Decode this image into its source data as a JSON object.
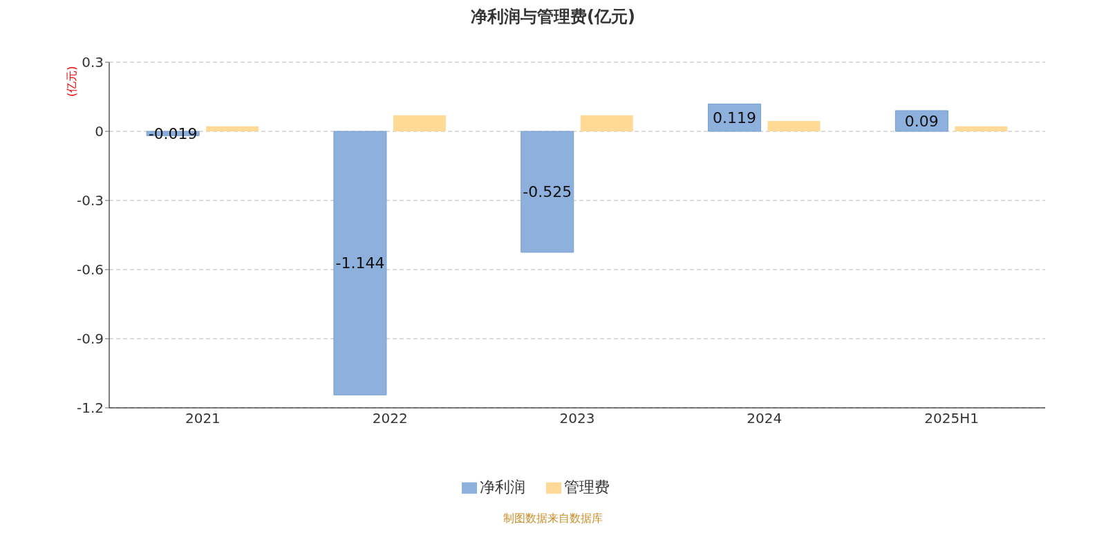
{
  "chart_data": {
    "type": "bar",
    "title": "净利润与管理费(亿元)",
    "ylabel": "(亿元)",
    "categories": [
      "2021",
      "2022",
      "2023",
      "2024",
      "2025H1"
    ],
    "series": [
      {
        "name": "净利润",
        "color": "#8eb0dc",
        "values": [
          -0.019,
          -1.144,
          -0.525,
          0.119,
          0.09
        ],
        "value_labels": [
          "-0.019",
          "-1.144",
          "-0.525",
          "0.119",
          "0.09"
        ]
      },
      {
        "name": "管理费",
        "color": "#ffd996",
        "values": [
          0.022,
          0.07,
          0.07,
          0.045,
          0.022
        ]
      }
    ],
    "ylim": [
      -1.2,
      0.3
    ],
    "yticks": [
      -1.2,
      -0.9,
      -0.6,
      -0.3,
      0,
      0.3
    ],
    "grid": "y",
    "legend": "bottom",
    "annotations": [
      "制图数据来自数据库"
    ]
  }
}
